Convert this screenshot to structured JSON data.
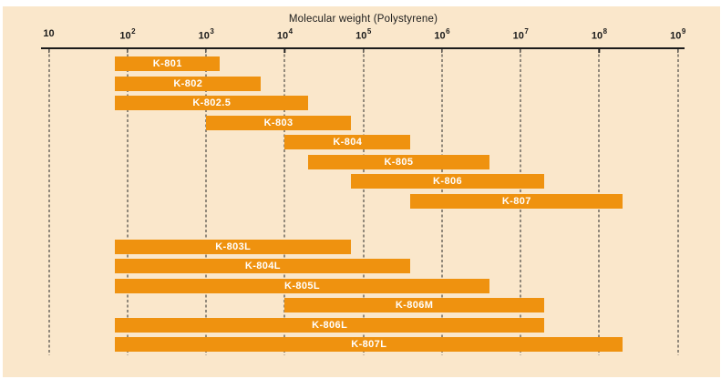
{
  "chart_data": {
    "type": "bar",
    "subtype": "horizontal-range-bars",
    "title": "Molecular weight (Polystyrene)",
    "xlabel": "Molecular weight (Polystyrene)",
    "ylabel": "",
    "x_scale": "log10",
    "x_range": [
      10,
      1000000000
    ],
    "grid": "vertical-dotted",
    "legend": "none",
    "x_ticks": [
      {
        "base": "10",
        "exp": ""
      },
      {
        "base": "10",
        "exp": "2"
      },
      {
        "base": "10",
        "exp": "3"
      },
      {
        "base": "10",
        "exp": "4"
      },
      {
        "base": "10",
        "exp": "5"
      },
      {
        "base": "10",
        "exp": "6"
      },
      {
        "base": "10",
        "exp": "7"
      },
      {
        "base": "10",
        "exp": "8"
      },
      {
        "base": "10",
        "exp": "9"
      }
    ],
    "bars": [
      {
        "label": "K-801",
        "group": 1,
        "min": 70,
        "max": 1500
      },
      {
        "label": "K-802",
        "group": 1,
        "min": 70,
        "max": 5000
      },
      {
        "label": "K-802.5",
        "group": 1,
        "min": 70,
        "max": 20000
      },
      {
        "label": "K-803",
        "group": 1,
        "min": 1000,
        "max": 70000
      },
      {
        "label": "K-804",
        "group": 1,
        "min": 10000,
        "max": 400000
      },
      {
        "label": "K-805",
        "group": 1,
        "min": 20000,
        "max": 4000000
      },
      {
        "label": "K-806",
        "group": 1,
        "min": 70000,
        "max": 20000000
      },
      {
        "label": "K-807",
        "group": 1,
        "min": 400000,
        "max": 200000000
      },
      {
        "label": "K-803L",
        "group": 2,
        "min": 70,
        "max": 70000
      },
      {
        "label": "K-804L",
        "group": 2,
        "min": 70,
        "max": 400000
      },
      {
        "label": "K-805L",
        "group": 2,
        "min": 70,
        "max": 4000000
      },
      {
        "label": "K-806M",
        "group": 2,
        "min": 10000,
        "max": 20000000
      },
      {
        "label": "K-806L",
        "group": 2,
        "min": 70,
        "max": 20000000
      },
      {
        "label": "K-807L",
        "group": 2,
        "min": 70,
        "max": 200000000
      }
    ]
  },
  "colors": {
    "background": "#FAE7CB",
    "bar": "#EF920F",
    "bar_label": "#FFFFFF",
    "axis": "#1B1B1B",
    "grid": "#2B2B2B"
  }
}
